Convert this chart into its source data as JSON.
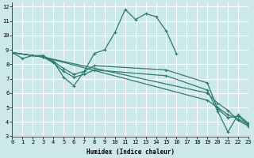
{
  "xlabel": "Humidex (Indice chaleur)",
  "xlim": [
    0,
    23
  ],
  "ylim": [
    3,
    12.3
  ],
  "yticks": [
    3,
    4,
    5,
    6,
    7,
    8,
    9,
    10,
    11,
    12
  ],
  "xticks": [
    0,
    1,
    2,
    3,
    4,
    5,
    6,
    7,
    8,
    9,
    10,
    11,
    12,
    13,
    14,
    15,
    16,
    17,
    18,
    19,
    20,
    21,
    22,
    23
  ],
  "background_color": "#cce8ea",
  "grid_color": "#ffffff",
  "line_color": "#2d7b6c",
  "lines": [
    {
      "x": [
        0,
        1,
        2,
        3,
        4,
        5,
        6,
        7,
        8,
        9,
        10,
        11,
        12,
        13,
        14,
        15,
        16
      ],
      "y": [
        8.8,
        8.4,
        8.6,
        8.6,
        8.2,
        7.1,
        6.5,
        7.5,
        8.75,
        9.0,
        10.2,
        11.8,
        11.1,
        11.5,
        11.3,
        10.3,
        8.7
      ]
    },
    {
      "x": [
        0,
        3,
        4,
        5,
        6,
        7,
        8,
        15,
        19,
        20,
        21,
        22,
        23
      ],
      "y": [
        8.8,
        8.5,
        8.2,
        7.7,
        7.3,
        7.5,
        7.9,
        7.6,
        6.7,
        4.9,
        4.3,
        4.4,
        3.8
      ]
    },
    {
      "x": [
        0,
        3,
        4,
        5,
        6,
        7,
        8,
        15,
        19,
        20,
        21,
        22,
        23
      ],
      "y": [
        8.8,
        8.5,
        8.1,
        7.5,
        7.1,
        7.3,
        7.6,
        7.2,
        6.2,
        4.75,
        3.3,
        4.5,
        3.9
      ]
    },
    {
      "x": [
        0,
        3,
        19,
        20,
        21,
        22,
        23
      ],
      "y": [
        8.8,
        8.5,
        5.5,
        5.0,
        4.5,
        4.2,
        3.8
      ]
    },
    {
      "x": [
        0,
        3,
        19,
        20,
        21,
        22,
        23
      ],
      "y": [
        8.8,
        8.5,
        6.0,
        5.3,
        4.8,
        4.1,
        3.7
      ]
    }
  ]
}
